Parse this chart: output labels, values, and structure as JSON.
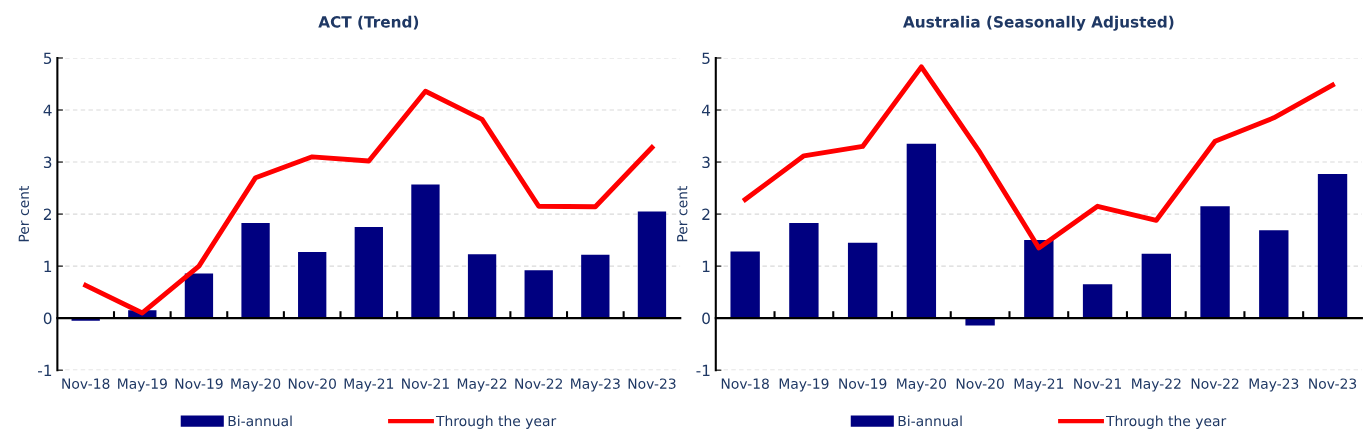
{
  "chart_data": [
    {
      "type": "bar",
      "title": "ACT (Trend)",
      "ylabel": "Per cent",
      "categories": [
        "Nov-18",
        "May-19",
        "Nov-19",
        "May-20",
        "Nov-20",
        "May-21",
        "Nov-21",
        "May-22",
        "Nov-22",
        "May-23",
        "Nov-23"
      ],
      "series": [
        {
          "name": "Bi-annual",
          "color": "#000080",
          "values": [
            -0.05,
            0.15,
            0.86,
            1.83,
            1.27,
            1.75,
            2.57,
            1.23,
            0.92,
            1.22,
            2.05
          ]
        },
        {
          "name": "Through the year",
          "type": "line",
          "color": "#ff0000",
          "values": [
            0.63,
            0.1,
            1.0,
            2.7,
            3.1,
            3.02,
            4.36,
            3.82,
            2.15,
            2.14,
            3.28
          ]
        }
      ],
      "ylim": [
        -1,
        5
      ],
      "yticks": [
        -1,
        0,
        1,
        2,
        3,
        4,
        5
      ],
      "grid": "y",
      "legend": "bottom",
      "marker": "none",
      "line_style": "solid"
    },
    {
      "type": "bar",
      "title": "Australia (Seasonally Adjusted)",
      "ylabel": "Per cent",
      "categories": [
        "Nov-18",
        "May-19",
        "Nov-19",
        "May-20",
        "Nov-20",
        "May-21",
        "Nov-21",
        "May-22",
        "Nov-22",
        "May-23",
        "Nov-23"
      ],
      "series": [
        {
          "name": "Bi-annual",
          "color": "#000080",
          "values": [
            1.28,
            1.83,
            1.45,
            3.35,
            -0.14,
            1.5,
            0.65,
            1.24,
            2.15,
            1.69,
            2.77
          ]
        },
        {
          "name": "Through the year",
          "type": "line",
          "color": "#ff0000",
          "values": [
            2.28,
            3.12,
            3.3,
            4.83,
            3.18,
            1.35,
            2.15,
            1.88,
            3.4,
            3.85,
            4.48
          ]
        }
      ],
      "ylim": [
        -1,
        5
      ],
      "yticks": [
        -1,
        0,
        1,
        2,
        3,
        4,
        5
      ],
      "grid": "y",
      "legend": "bottom",
      "marker": "none",
      "line_style": "solid"
    }
  ]
}
